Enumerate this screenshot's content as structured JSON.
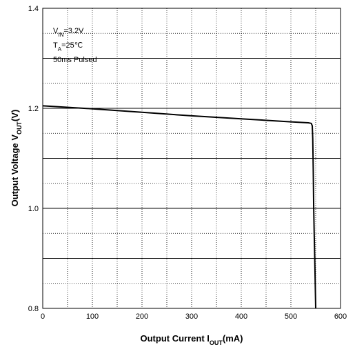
{
  "chart_data": {
    "type": "line",
    "title": "",
    "xlabel": {
      "main": "Output Current I",
      "sub": "OUT",
      "unit": "(mA)"
    },
    "ylabel": {
      "main": "Output Voltage V",
      "sub": "OUT",
      "unit": "(V)"
    },
    "xlim": [
      0,
      600
    ],
    "ylim": [
      0.8,
      1.4
    ],
    "x_ticks": [
      0,
      100,
      200,
      300,
      400,
      500,
      600
    ],
    "x_tick_labels": [
      "0",
      "100",
      "200",
      "300",
      "400",
      "500",
      "600"
    ],
    "y_tick_labels": [
      {
        "value": 0.8,
        "label": "0.8"
      },
      {
        "value": 1.0,
        "label": "1.0"
      },
      {
        "value": 1.2,
        "label": "1.2"
      },
      {
        "value": 1.4,
        "label": "1.4"
      }
    ],
    "grid": true,
    "annotations": [
      {
        "id": "vin",
        "main": "V",
        "sub": "IN",
        "rest": "=3.2V"
      },
      {
        "id": "ta",
        "main": "T",
        "sub": "A",
        "rest": "=25℃"
      },
      {
        "id": "pulsed",
        "main": "50ms Pulsed",
        "sub": "",
        "rest": ""
      }
    ],
    "series": [
      {
        "x": [
          0,
          100,
          200,
          300,
          400,
          500,
          535,
          541,
          543,
          544,
          545,
          546,
          547,
          548,
          549,
          550
        ],
        "y": [
          1.205,
          1.199,
          1.192,
          1.185,
          1.179,
          1.173,
          1.171,
          1.17,
          1.165,
          1.14,
          1.08,
          1.0,
          0.95,
          0.9,
          0.85,
          0.8
        ]
      }
    ]
  }
}
